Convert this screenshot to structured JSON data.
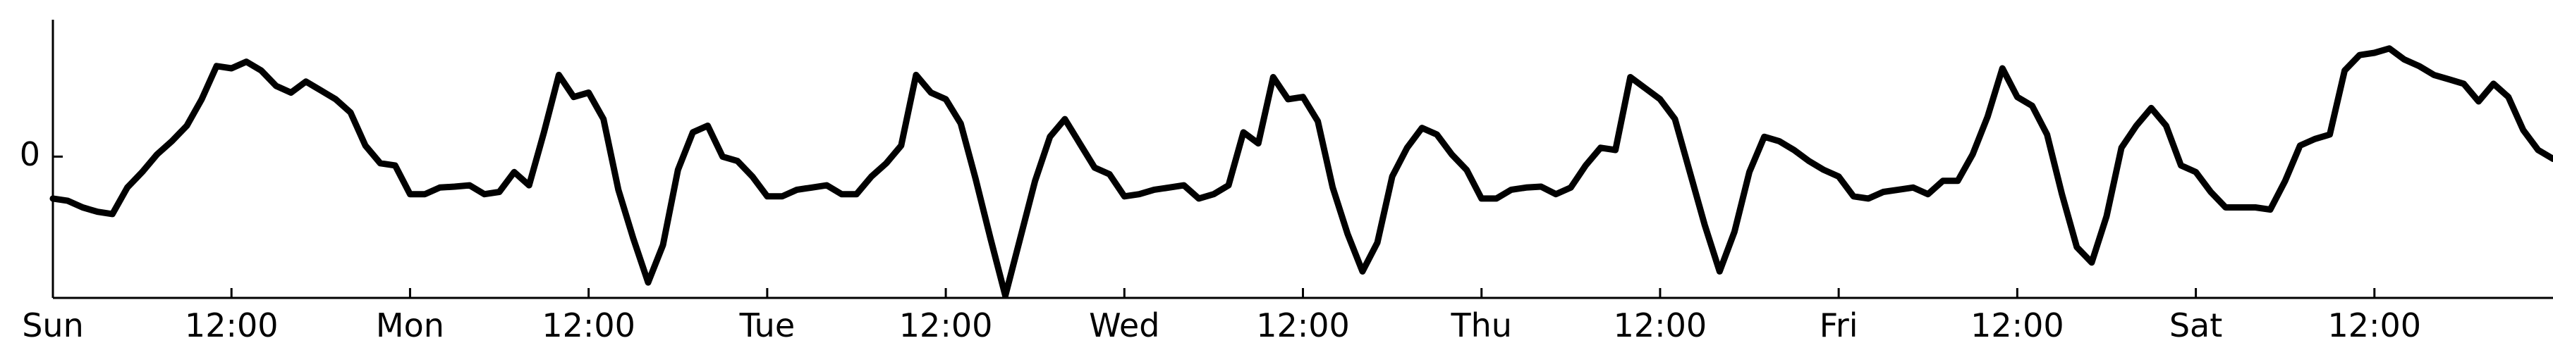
{
  "chart_data": {
    "type": "line",
    "title": "",
    "xlabel": "",
    "ylabel": "",
    "grid": false,
    "x_unit": "hours",
    "x_range": [
      0,
      168
    ],
    "x_ticks": [
      {
        "x": 0,
        "label": "Sun"
      },
      {
        "x": 12,
        "label": "12:00"
      },
      {
        "x": 24,
        "label": "Mon"
      },
      {
        "x": 36,
        "label": "12:00"
      },
      {
        "x": 48,
        "label": "Tue"
      },
      {
        "x": 60,
        "label": "12:00"
      },
      {
        "x": 72,
        "label": "Wed"
      },
      {
        "x": 84,
        "label": "12:00"
      },
      {
        "x": 96,
        "label": "Thu"
      },
      {
        "x": 108,
        "label": "12:00"
      },
      {
        "x": 120,
        "label": "Fri"
      },
      {
        "x": 132,
        "label": "12:00"
      },
      {
        "x": 144,
        "label": "Sat"
      },
      {
        "x": 156,
        "label": "12:00"
      }
    ],
    "y_ticks": [
      {
        "y": 0,
        "label": "0"
      }
    ],
    "y_range": [
      -3.2,
      3.1
    ],
    "series": [
      {
        "color": "#000000",
        "x": [
          0,
          1,
          2,
          3,
          4,
          5,
          6,
          7,
          8,
          9,
          10,
          11,
          12,
          13,
          14,
          15,
          16,
          17,
          18,
          19,
          20,
          21,
          22,
          23,
          24,
          25,
          26,
          27,
          28,
          29,
          30,
          31,
          32,
          33,
          34,
          35,
          36,
          37,
          38,
          39,
          40,
          41,
          42,
          43,
          44,
          45,
          46,
          47,
          48,
          49,
          50,
          51,
          52,
          53,
          54,
          55,
          56,
          57,
          58,
          59,
          60,
          61,
          62,
          63,
          64,
          65,
          66,
          67,
          68,
          69,
          70,
          71,
          72,
          73,
          74,
          75,
          76,
          77,
          78,
          79,
          80,
          81,
          82,
          83,
          84,
          85,
          86,
          87,
          88,
          89,
          90,
          91,
          92,
          93,
          94,
          95,
          96,
          97,
          98,
          99,
          100,
          101,
          102,
          103,
          104,
          105,
          106,
          107,
          108,
          109,
          110,
          111,
          112,
          113,
          114,
          115,
          116,
          117,
          118,
          119,
          120,
          121,
          122,
          123,
          124,
          125,
          126,
          127,
          128,
          129,
          130,
          131,
          132,
          133,
          134,
          135,
          136,
          137,
          138,
          139,
          140,
          141,
          142,
          143,
          144,
          145,
          146,
          147,
          148,
          149,
          150,
          151,
          152,
          153,
          154,
          155,
          156,
          157,
          158,
          159,
          160,
          161,
          162,
          163,
          164,
          165,
          166,
          167,
          168
        ],
        "y": [
          -0.95,
          -1.0,
          -1.15,
          -1.25,
          -1.3,
          -0.7,
          -0.35,
          0.05,
          0.35,
          0.7,
          1.3,
          2.05,
          2.0,
          2.15,
          1.95,
          1.6,
          1.45,
          1.7,
          1.5,
          1.3,
          1.0,
          0.25,
          -0.15,
          -0.2,
          -0.85,
          -0.85,
          -0.7,
          -0.68,
          -0.65,
          -0.85,
          -0.8,
          -0.35,
          -0.65,
          0.55,
          1.85,
          1.35,
          1.45,
          0.85,
          -0.75,
          -1.85,
          -2.85,
          -2.0,
          -0.3,
          0.55,
          0.7,
          0.0,
          -0.1,
          -0.45,
          -0.9,
          -0.9,
          -0.75,
          -0.7,
          -0.65,
          -0.85,
          -0.85,
          -0.45,
          -0.15,
          0.25,
          1.85,
          1.45,
          1.3,
          0.75,
          -0.5,
          -1.85,
          -3.15,
          -1.85,
          -0.55,
          0.45,
          0.85,
          0.3,
          -0.25,
          -0.4,
          -0.9,
          -0.85,
          -0.75,
          -0.7,
          -0.65,
          -0.95,
          -0.85,
          -0.65,
          0.55,
          0.3,
          1.8,
          1.3,
          1.35,
          0.8,
          -0.7,
          -1.75,
          -2.6,
          -1.95,
          -0.45,
          0.2,
          0.65,
          0.5,
          0.05,
          -0.3,
          -0.95,
          -0.95,
          -0.75,
          -0.7,
          -0.68,
          -0.85,
          -0.7,
          -0.2,
          0.2,
          0.15,
          1.8,
          1.55,
          1.3,
          0.85,
          -0.35,
          -1.55,
          -2.6,
          -1.7,
          -0.35,
          0.45,
          0.35,
          0.15,
          -0.1,
          -0.3,
          -0.45,
          -0.9,
          -0.95,
          -0.8,
          -0.75,
          -0.7,
          -0.85,
          -0.55,
          -0.55,
          0.05,
          0.9,
          2.0,
          1.35,
          1.15,
          0.5,
          -0.85,
          -2.05,
          -2.4,
          -1.35,
          0.2,
          0.7,
          1.1,
          0.7,
          -0.2,
          -0.35,
          -0.8,
          -1.15,
          -1.15,
          -1.15,
          -1.2,
          -0.55,
          0.25,
          0.4,
          0.5,
          1.95,
          2.3,
          2.35,
          2.45,
          2.2,
          2.05,
          1.85,
          1.75,
          1.65,
          1.25,
          1.65,
          1.35,
          0.6,
          0.15,
          -0.05
        ]
      }
    ]
  }
}
